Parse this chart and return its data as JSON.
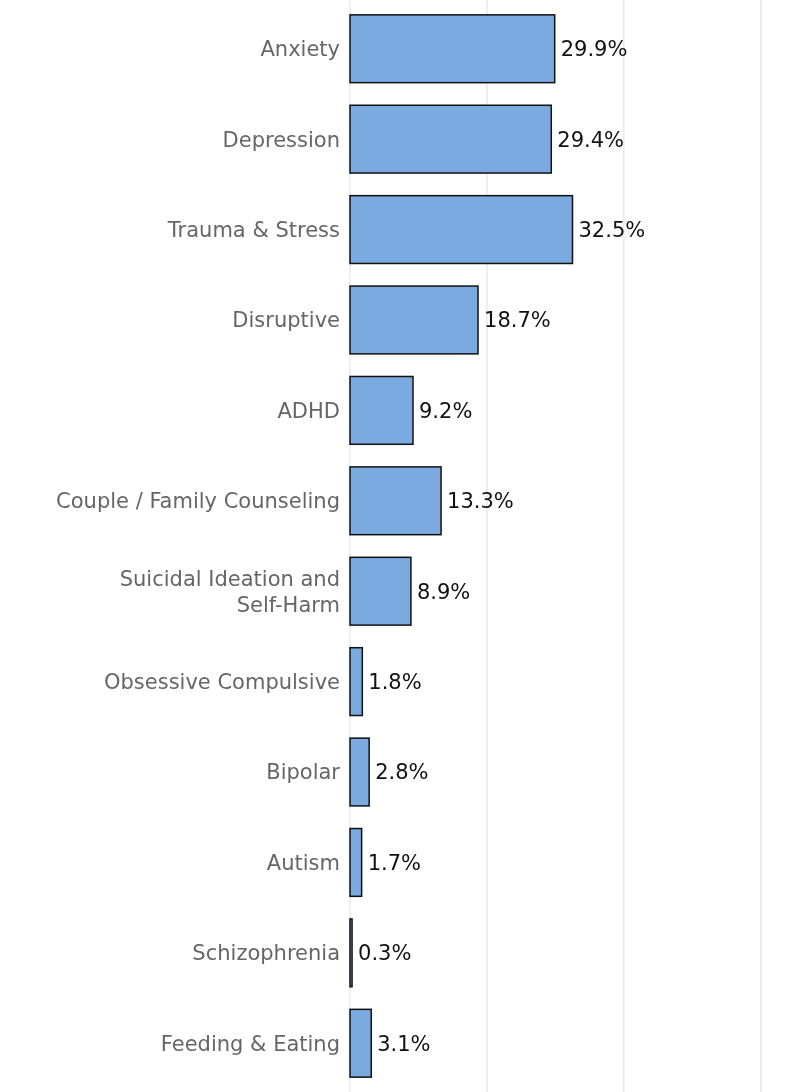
{
  "chart_data": {
    "type": "bar",
    "orientation": "horizontal",
    "categories": [
      "Anxiety",
      "Depression",
      "Trauma & Stress",
      "Disruptive",
      "ADHD",
      "Couple / Family Counseling",
      "Suicidal Ideation and Self-Harm",
      "Obsessive Compulsive",
      "Bipolar",
      "Autism",
      "Schizophrenia",
      "Feeding & Eating"
    ],
    "values": [
      29.9,
      29.4,
      32.5,
      18.7,
      9.2,
      13.3,
      8.9,
      1.8,
      2.8,
      1.7,
      0.3,
      3.1
    ],
    "value_labels": [
      "29.9%",
      "29.4%",
      "32.5%",
      "18.7%",
      "9.2%",
      "13.3%",
      "8.9%",
      "1.8%",
      "2.8%",
      "1.7%",
      "0.3%",
      "3.1%"
    ],
    "color": "#7aaadf",
    "xlim": [
      0,
      65
    ],
    "xticks": [
      {
        "value": 0,
        "label": null
      },
      {
        "value": 20,
        "label": null
      },
      {
        "value": 40,
        "label": null
      },
      {
        "value": 60,
        "label": null
      }
    ],
    "grid": "x",
    "tick_labels": "y"
  }
}
